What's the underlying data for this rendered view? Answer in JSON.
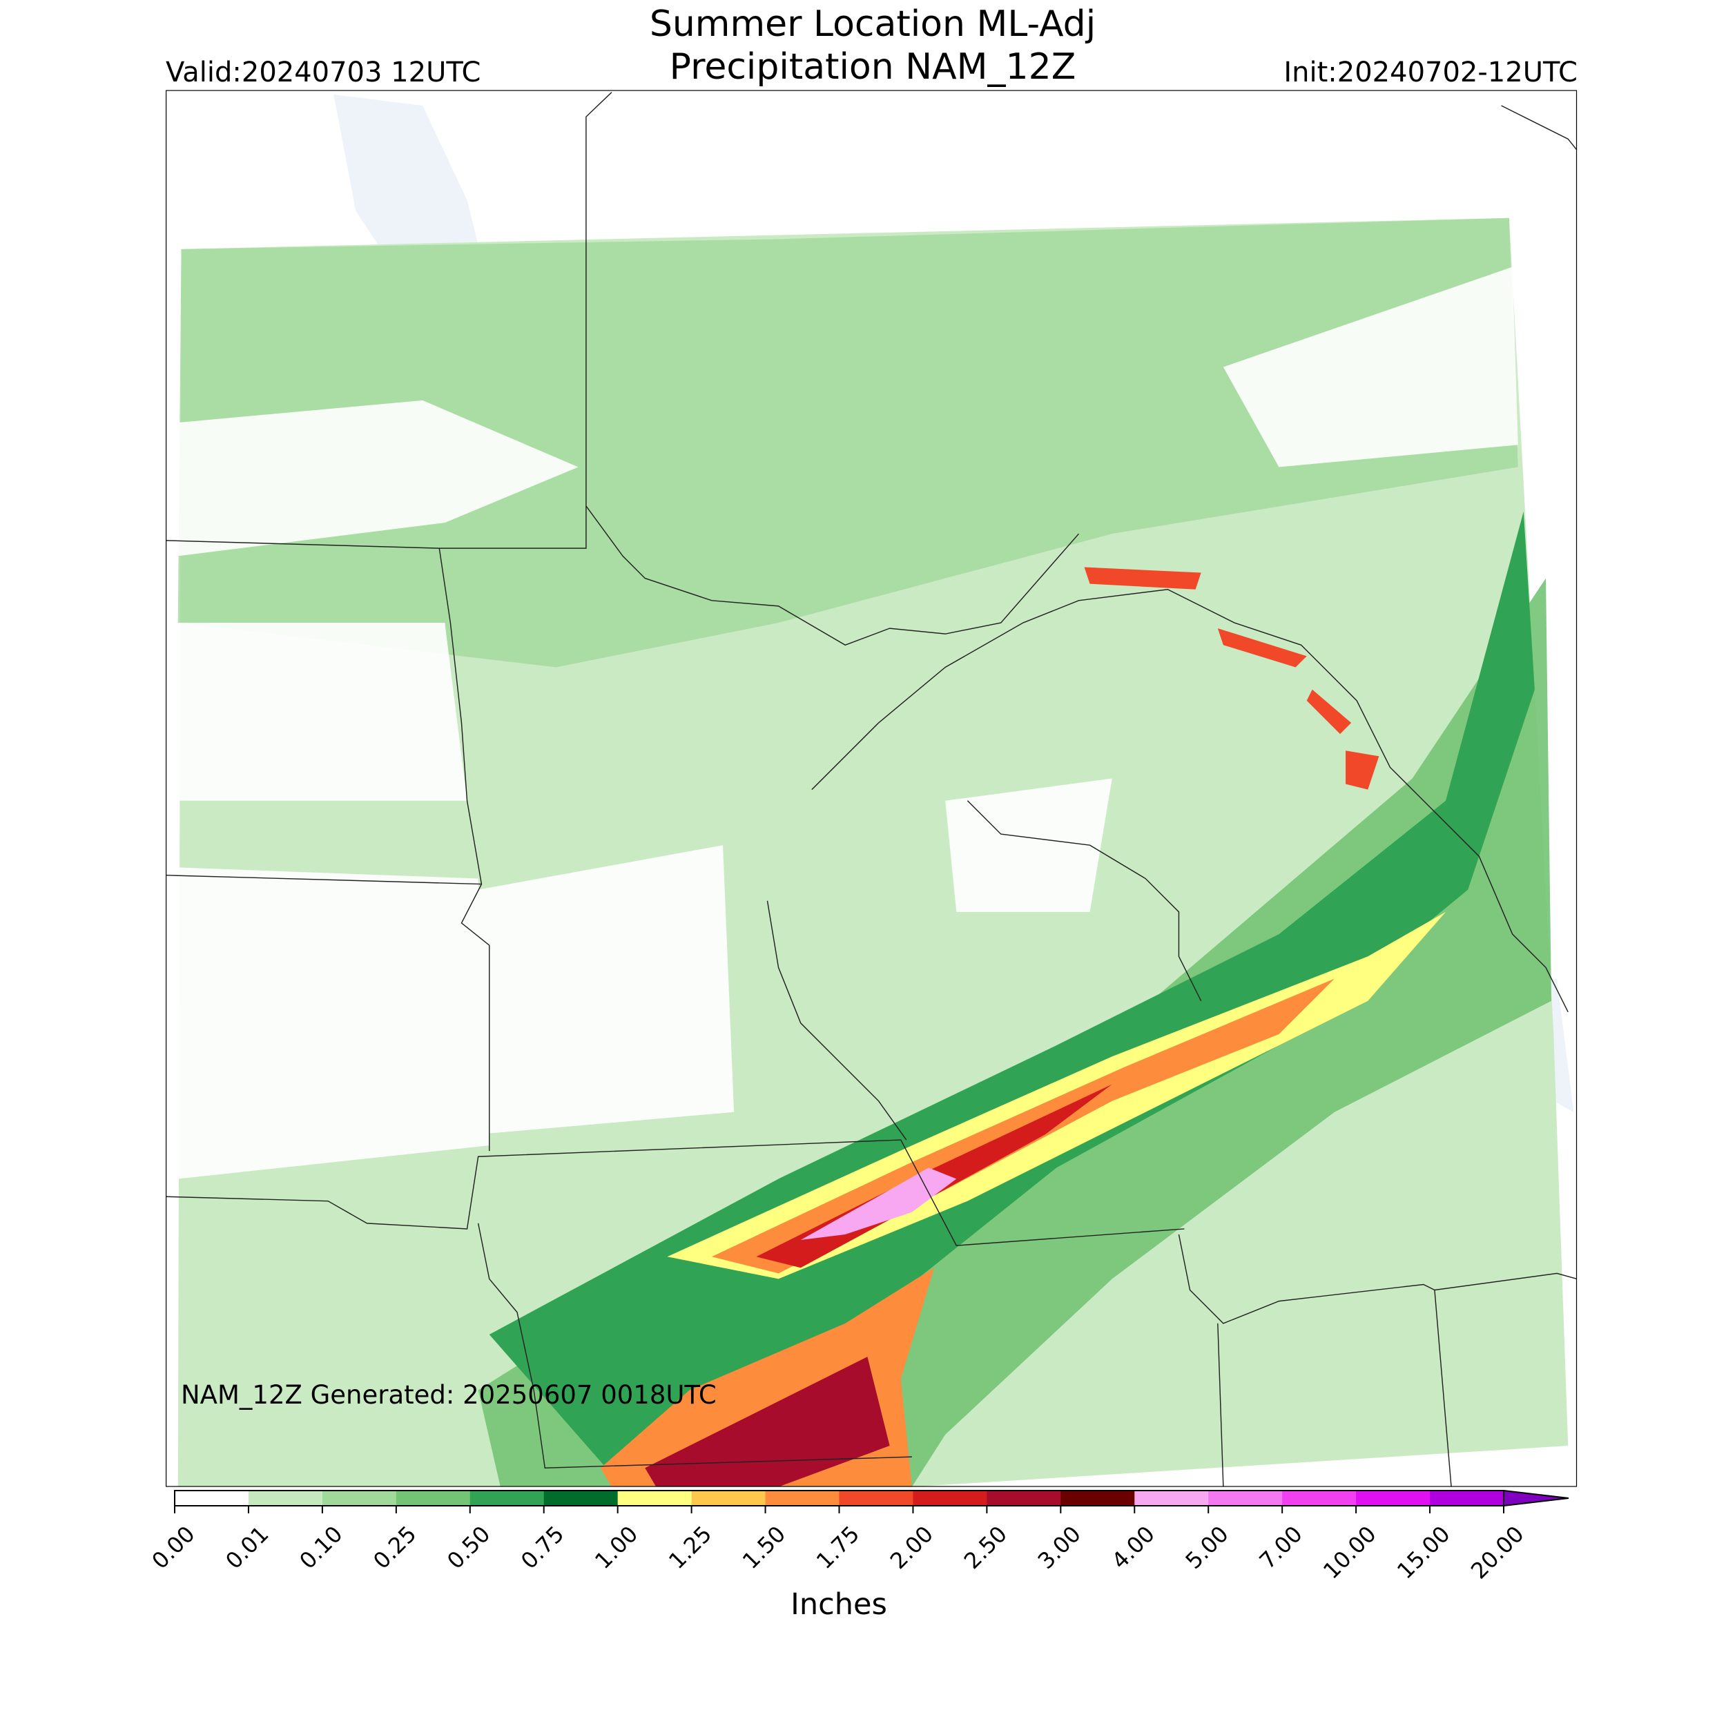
{
  "header": {
    "title": [
      "Summer Location ML-Adj",
      "Precipitation NAM_12Z"
    ],
    "valid": "Valid:20240703 12UTC",
    "init": "Init:20240702-12UTC"
  },
  "note": "NAM_12Z Generated: 20250607 0018UTC",
  "colorbar": {
    "label": "Inches",
    "ticks": [
      {
        "value": 0,
        "label": "0.00"
      },
      {
        "value": 0.01,
        "label": "0.01"
      },
      {
        "value": 0.1,
        "label": "0.10"
      },
      {
        "value": 0.25,
        "label": "0.25"
      },
      {
        "value": 0.5,
        "label": "0.50"
      },
      {
        "value": 0.75,
        "label": "0.75"
      },
      {
        "value": 1,
        "label": "1.00"
      },
      {
        "value": 1.25,
        "label": "1.25"
      },
      {
        "value": 1.5,
        "label": "1.50"
      },
      {
        "value": 1.75,
        "label": "1.75"
      },
      {
        "value": 2,
        "label": "2.00"
      },
      {
        "value": 2.5,
        "label": "2.50"
      },
      {
        "value": 3,
        "label": "3.00"
      },
      {
        "value": 4,
        "label": "4.00"
      },
      {
        "value": 5,
        "label": "5.00"
      },
      {
        "value": 7,
        "label": "7.00"
      },
      {
        "value": 10,
        "label": "10.00"
      },
      {
        "value": 15,
        "label": "15.00"
      },
      {
        "value": 20,
        "label": "20.00"
      }
    ],
    "colors": [
      "#ffffff",
      "#c7e9c0",
      "#a1d99b",
      "#74c476",
      "#31a354",
      "#006d2c",
      "#ffff80",
      "#ffc84d",
      "#fd8d3c",
      "#f04828",
      "#d41c1c",
      "#a80c2c",
      "#6b0000",
      "#f8a8f0",
      "#f478f0",
      "#f040f0",
      "#e010f0",
      "#b000e0"
    ],
    "extend_color": "#8000c0"
  }
}
